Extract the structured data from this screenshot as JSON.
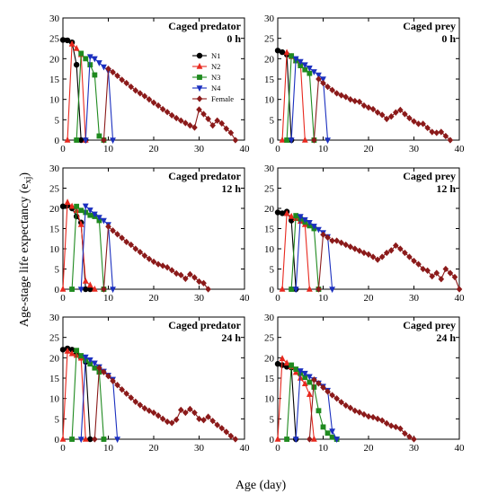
{
  "figure": {
    "ylabel_main": "Age-stage life expectancy (e",
    "ylabel_sub": "xj",
    "ylabel_close": ")",
    "xlabel": "Age (day)"
  },
  "chart_data": [
    {
      "type": "line",
      "title_line1": "Caged predator",
      "title_line2": "0 h",
      "xlim": [
        0,
        40
      ],
      "ylim": [
        0,
        30
      ],
      "xticks": [
        0,
        10,
        20,
        30,
        40
      ],
      "yticks": [
        0,
        5,
        10,
        15,
        20,
        25,
        30
      ],
      "legend": "top-right",
      "series": [
        {
          "name": "N1",
          "color": "#000000",
          "marker": "circle",
          "x": [
            0,
            1,
            2,
            3,
            4,
            5
          ],
          "y": [
            24.6,
            24.5,
            24,
            18.5,
            0,
            0
          ]
        },
        {
          "name": "N2",
          "color": "#e8281e",
          "marker": "triangle-up",
          "x": [
            1,
            2,
            3,
            4,
            5
          ],
          "y": [
            0,
            23.6,
            22.5,
            21,
            0
          ]
        },
        {
          "name": "N3",
          "color": "#1f8a1f",
          "marker": "square",
          "x": [
            3,
            4,
            5,
            6,
            7,
            8,
            9
          ],
          "y": [
            0,
            21.3,
            20,
            18.5,
            16,
            1,
            0
          ]
        },
        {
          "name": "N4",
          "color": "#1a2fbf",
          "marker": "triangle-down",
          "x": [
            5,
            6,
            7,
            8,
            9,
            10,
            11
          ],
          "y": [
            0,
            20.5,
            20,
            19,
            18,
            17,
            0
          ]
        },
        {
          "name": "Female",
          "color": "#8b1a1a",
          "marker": "diamond",
          "x": [
            9,
            10,
            11,
            12,
            13,
            14,
            15,
            16,
            17,
            18,
            19,
            20,
            21,
            22,
            23,
            24,
            25,
            26,
            27,
            28,
            29,
            30,
            31,
            32,
            33,
            34,
            35,
            36,
            37,
            38
          ],
          "y": [
            0,
            17.5,
            16.7,
            15.8,
            14.8,
            14,
            13.1,
            12.2,
            11.5,
            10.8,
            10,
            9.2,
            8.5,
            7.6,
            6.9,
            6.1,
            5.4,
            4.8,
            4.2,
            3.6,
            3.1,
            7.5,
            6.4,
            5.2,
            3.6,
            4.8,
            4.1,
            2.8,
            1.8,
            0
          ]
        }
      ]
    },
    {
      "type": "line",
      "title_line1": "Caged prey",
      "title_line2": "0 h",
      "xlim": [
        0,
        40
      ],
      "ylim": [
        0,
        30
      ],
      "xticks": [
        0,
        10,
        20,
        30,
        40
      ],
      "yticks": [
        0,
        5,
        10,
        15,
        20,
        25,
        30
      ],
      "series": [
        {
          "name": "N1",
          "color": "#000000",
          "marker": "circle",
          "x": [
            0,
            1,
            2,
            3
          ],
          "y": [
            22,
            21.6,
            21,
            0
          ]
        },
        {
          "name": "N2",
          "color": "#e8281e",
          "marker": "triangle-up",
          "x": [
            1,
            2,
            3,
            4,
            5,
            6
          ],
          "y": [
            0,
            21.5,
            20.5,
            19.5,
            19,
            0
          ]
        },
        {
          "name": "N3",
          "color": "#1f8a1f",
          "marker": "square",
          "x": [
            2,
            3,
            4,
            5,
            6,
            7,
            8
          ],
          "y": [
            0,
            20.7,
            19.5,
            18.3,
            17.3,
            16.4,
            0
          ]
        },
        {
          "name": "N4",
          "color": "#1a2fbf",
          "marker": "triangle-down",
          "x": [
            3,
            4,
            5,
            6,
            7,
            8,
            9,
            10,
            11
          ],
          "y": [
            0,
            20,
            19.3,
            18.5,
            17.7,
            16.8,
            16,
            15,
            0
          ]
        },
        {
          "name": "Female",
          "color": "#8b1a1a",
          "marker": "diamond",
          "x": [
            8,
            9,
            10,
            11,
            12,
            13,
            14,
            15,
            16,
            17,
            18,
            19,
            20,
            21,
            22,
            23,
            24,
            25,
            26,
            27,
            28,
            29,
            30,
            31,
            32,
            33,
            34,
            35,
            36,
            37,
            38
          ],
          "y": [
            0,
            15,
            14,
            13.1,
            12.3,
            11.5,
            11,
            10.6,
            10,
            9.6,
            9.4,
            8.5,
            8,
            7.6,
            6.8,
            6.2,
            5.2,
            5.8,
            6.8,
            7.4,
            6.4,
            5.4,
            4.6,
            4,
            4,
            3,
            2,
            1.8,
            2,
            1,
            0
          ]
        }
      ]
    },
    {
      "type": "line",
      "title_line1": "Caged predator",
      "title_line2": "12 h",
      "xlim": [
        0,
        40
      ],
      "ylim": [
        0,
        30
      ],
      "xticks": [
        0,
        10,
        20,
        30,
        40
      ],
      "yticks": [
        0,
        5,
        10,
        15,
        20,
        25,
        30
      ],
      "series": [
        {
          "name": "N1",
          "color": "#000000",
          "marker": "circle",
          "x": [
            0,
            1,
            2,
            3,
            4,
            5,
            6
          ],
          "y": [
            20.5,
            20.7,
            20,
            18,
            16.5,
            0,
            0
          ]
        },
        {
          "name": "N2",
          "color": "#e8281e",
          "marker": "triangle-up",
          "x": [
            0,
            1,
            2,
            3,
            4,
            5,
            6,
            7
          ],
          "y": [
            0,
            21.5,
            20.5,
            19.5,
            16,
            2,
            1,
            0
          ]
        },
        {
          "name": "N3",
          "color": "#1f8a1f",
          "marker": "square",
          "x": [
            2,
            3,
            4,
            5,
            6,
            7,
            8,
            9
          ],
          "y": [
            0,
            20.5,
            19.5,
            19,
            18.3,
            18,
            17,
            0
          ]
        },
        {
          "name": "N4",
          "color": "#1a2fbf",
          "marker": "triangle-down",
          "x": [
            4,
            5,
            6,
            7,
            8,
            9,
            10,
            11
          ],
          "y": [
            0,
            20.6,
            19.6,
            18.6,
            17.8,
            17,
            16,
            0
          ]
        },
        {
          "name": "Female",
          "color": "#8b1a1a",
          "marker": "diamond",
          "x": [
            9,
            10,
            11,
            12,
            13,
            14,
            15,
            16,
            17,
            18,
            19,
            20,
            21,
            22,
            23,
            24,
            25,
            26,
            27,
            28,
            29,
            30,
            31,
            32
          ],
          "y": [
            0,
            15.5,
            14.5,
            13.6,
            12.7,
            11.7,
            11,
            10,
            9.2,
            8.3,
            7.5,
            6.8,
            6.2,
            5.8,
            5.4,
            4.7,
            3.9,
            3.5,
            2.6,
            3.7,
            2.9,
            1.9,
            1.5,
            0
          ]
        }
      ]
    },
    {
      "type": "line",
      "title_line1": "Caged prey",
      "title_line2": "12 h",
      "xlim": [
        0,
        40
      ],
      "ylim": [
        0,
        30
      ],
      "xticks": [
        0,
        10,
        20,
        30,
        40
      ],
      "yticks": [
        0,
        5,
        10,
        15,
        20,
        25,
        30
      ],
      "series": [
        {
          "name": "N1",
          "color": "#000000",
          "marker": "circle",
          "x": [
            0,
            1,
            2,
            3,
            4
          ],
          "y": [
            19,
            18.8,
            19.2,
            17,
            0
          ]
        },
        {
          "name": "N2",
          "color": "#e8281e",
          "marker": "triangle-up",
          "x": [
            1,
            2,
            3,
            4,
            5,
            6,
            7
          ],
          "y": [
            0,
            18.7,
            18,
            17.5,
            16.8,
            16,
            0
          ]
        },
        {
          "name": "N3",
          "color": "#1f8a1f",
          "marker": "square",
          "x": [
            3,
            4,
            5,
            6,
            7,
            8,
            9
          ],
          "y": [
            0,
            18.2,
            17.4,
            16.6,
            15.7,
            15,
            0
          ]
        },
        {
          "name": "N4",
          "color": "#1a2fbf",
          "marker": "triangle-down",
          "x": [
            4,
            5,
            6,
            7,
            8,
            9,
            10,
            11,
            12
          ],
          "y": [
            0,
            18,
            17.2,
            16.5,
            15.6,
            14.8,
            14,
            13,
            0
          ]
        },
        {
          "name": "Female",
          "color": "#8b1a1a",
          "marker": "diamond",
          "x": [
            9,
            10,
            11,
            12,
            13,
            14,
            15,
            16,
            17,
            18,
            19,
            20,
            21,
            22,
            23,
            24,
            25,
            26,
            27,
            28,
            29,
            30,
            31,
            32,
            33,
            34,
            35,
            36,
            37,
            38,
            39,
            40
          ],
          "y": [
            0,
            13.5,
            12.8,
            12,
            12,
            11.5,
            11,
            10.5,
            10,
            9.5,
            9,
            8.6,
            8,
            7.3,
            8,
            9,
            9.6,
            10.8,
            10,
            9,
            8,
            7,
            6.2,
            5,
            4.6,
            3.2,
            4,
            2.5,
            5,
            4,
            3,
            0
          ]
        }
      ]
    },
    {
      "type": "line",
      "title_line1": "Caged predator",
      "title_line2": "24 h",
      "xlim": [
        0,
        40
      ],
      "ylim": [
        0,
        30
      ],
      "xticks": [
        0,
        10,
        20,
        30,
        40
      ],
      "yticks": [
        0,
        5,
        10,
        15,
        20,
        25,
        30
      ],
      "series": [
        {
          "name": "N1",
          "color": "#000000",
          "marker": "circle",
          "x": [
            0,
            1,
            2,
            3,
            4,
            5,
            6
          ],
          "y": [
            22,
            22.3,
            22,
            21,
            20,
            19,
            0
          ]
        },
        {
          "name": "N2",
          "color": "#e8281e",
          "marker": "triangle-up",
          "x": [
            0,
            1,
            2,
            3,
            4,
            5
          ],
          "y": [
            0,
            21.6,
            21,
            20.6,
            19.9,
            0
          ]
        },
        {
          "name": "N3",
          "color": "#1f8a1f",
          "marker": "square",
          "x": [
            2,
            3,
            4,
            5,
            6,
            7,
            8,
            9
          ],
          "y": [
            0,
            21.8,
            20.5,
            19.4,
            18.5,
            17.5,
            16.5,
            0
          ]
        },
        {
          "name": "N4",
          "color": "#1a2fbf",
          "marker": "triangle-down",
          "x": [
            4,
            5,
            6,
            7,
            8,
            9,
            10,
            11,
            12
          ],
          "y": [
            0,
            20.2,
            19.5,
            18.7,
            17.8,
            16.7,
            15.7,
            14.7,
            0
          ]
        },
        {
          "name": "Female",
          "color": "#8b1a1a",
          "marker": "diamond",
          "x": [
            7,
            8,
            9,
            10,
            11,
            12,
            13,
            14,
            15,
            16,
            17,
            18,
            19,
            20,
            21,
            22,
            23,
            24,
            25,
            26,
            27,
            28,
            29,
            30,
            31,
            32,
            33,
            34,
            35,
            36,
            37,
            38
          ],
          "y": [
            0,
            17.5,
            16.5,
            15.5,
            14.3,
            13.3,
            12.2,
            11.2,
            10.2,
            9.2,
            8.4,
            7.6,
            7,
            6.5,
            5.8,
            5,
            4.3,
            4,
            4.8,
            7.2,
            6.5,
            7.4,
            6.5,
            5,
            4.7,
            5.5,
            4.5,
            3.5,
            2.7,
            1.8,
            0.8,
            0
          ]
        }
      ]
    },
    {
      "type": "line",
      "title_line1": "Caged prey",
      "title_line2": "24 h",
      "xlim": [
        0,
        40
      ],
      "ylim": [
        0,
        30
      ],
      "xticks": [
        0,
        10,
        20,
        30,
        40
      ],
      "yticks": [
        0,
        5,
        10,
        15,
        20,
        25,
        30
      ],
      "series": [
        {
          "name": "N1",
          "color": "#000000",
          "marker": "circle",
          "x": [
            0,
            1,
            2,
            3,
            4
          ],
          "y": [
            18.5,
            18.2,
            17.8,
            17.6,
            0
          ]
        },
        {
          "name": "N2",
          "color": "#e8281e",
          "marker": "triangle-up",
          "x": [
            0,
            1,
            2,
            3,
            4,
            5,
            6,
            7,
            8
          ],
          "y": [
            0,
            19.8,
            18.7,
            17.8,
            16.4,
            15,
            13.6,
            11,
            0
          ]
        },
        {
          "name": "N3",
          "color": "#1f8a1f",
          "marker": "square",
          "x": [
            2,
            3,
            4,
            5,
            6,
            7,
            8,
            9,
            10,
            11,
            12,
            13
          ],
          "y": [
            0,
            18.2,
            17.2,
            16.2,
            15.2,
            14,
            12.8,
            7,
            3,
            1.5,
            0.5,
            0
          ]
        },
        {
          "name": "N4",
          "color": "#1a2fbf",
          "marker": "triangle-down",
          "x": [
            4,
            5,
            6,
            7,
            8,
            9,
            10,
            11,
            12,
            13
          ],
          "y": [
            0,
            16.8,
            16.2,
            15.4,
            14.6,
            13.8,
            13,
            12,
            2,
            0
          ]
        },
        {
          "name": "Female",
          "color": "#8b1a1a",
          "marker": "diamond",
          "x": [
            7,
            8,
            9,
            10,
            11,
            12,
            13,
            14,
            15,
            16,
            17,
            18,
            19,
            20,
            21,
            22,
            23,
            24,
            25,
            26,
            27,
            28,
            29,
            30
          ],
          "y": [
            0,
            14.6,
            13.7,
            12.7,
            11.7,
            10.8,
            10,
            9.1,
            8.3,
            7.7,
            7,
            6.6,
            6.1,
            5.6,
            5.4,
            5,
            4.6,
            3.9,
            3.3,
            3,
            2.6,
            1.4,
            0.6,
            0
          ]
        }
      ]
    }
  ]
}
